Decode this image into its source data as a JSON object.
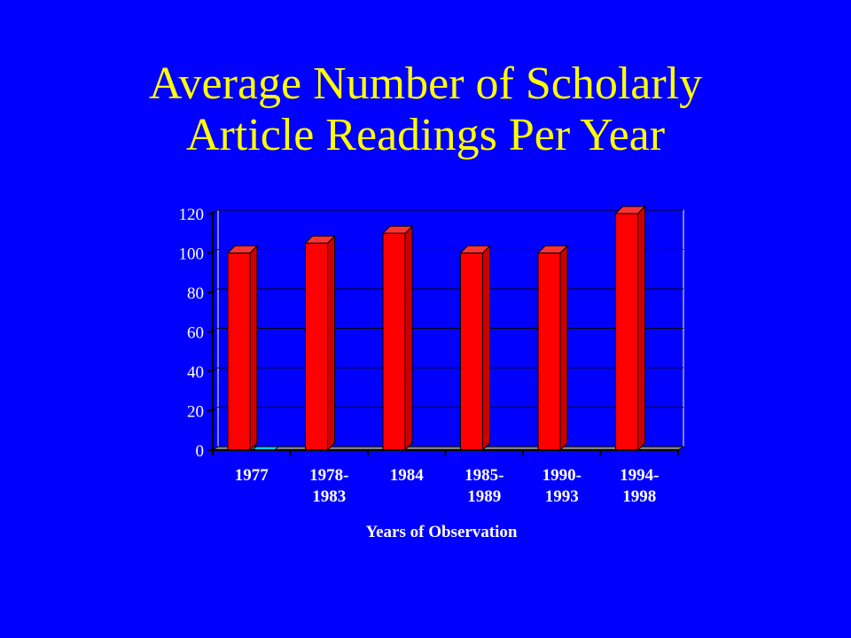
{
  "slide": {
    "title_line1": "Average Number of Scholarly",
    "title_line2": "Article Readings Per Year"
  },
  "colors": {
    "background": "#0000ff",
    "title": "#ffff00",
    "bar": "#ff0000",
    "plot_area": "#0000ff",
    "floor": "#808080",
    "axis_text": "#ffffff"
  },
  "chart_data": {
    "type": "bar",
    "title": "",
    "xlabel": "Years of Observation",
    "ylabel": "",
    "categories": [
      [
        "1977"
      ],
      [
        "1978-",
        "1983"
      ],
      [
        "1984"
      ],
      [
        "1985-",
        "1989"
      ],
      [
        "1990-",
        "1993"
      ],
      [
        "1994-",
        "1998"
      ]
    ],
    "series": [
      {
        "values": [
          100,
          105,
          110,
          100,
          100,
          120
        ]
      }
    ],
    "ylim": [
      0,
      120
    ],
    "yticks": [
      0,
      20,
      40,
      60,
      80,
      100,
      120
    ],
    "grid": true,
    "legend": "none"
  }
}
